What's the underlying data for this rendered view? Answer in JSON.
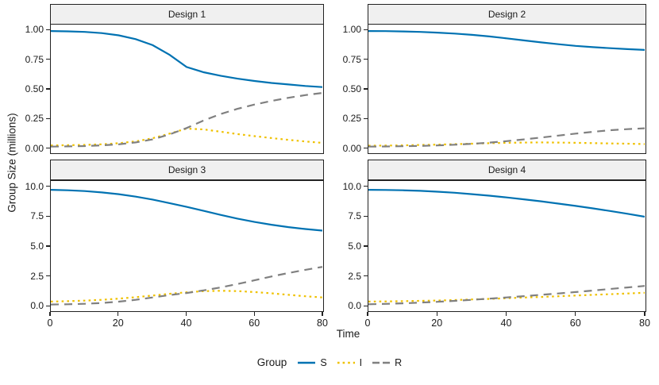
{
  "figure": {
    "y_axis_title": "Group Size (millions)",
    "x_axis_title": "Time",
    "background": "#FFFFFF",
    "panel_border_color": "#222222",
    "strip_background": "#F0F0F0"
  },
  "legend": {
    "title": "Group",
    "entries": [
      {
        "label": "S",
        "color": "#0072B2",
        "dash": "solid"
      },
      {
        "label": "I",
        "color": "#EFC100",
        "dash": "dotted"
      },
      {
        "label": "R",
        "color": "#808080",
        "dash": "dashed"
      }
    ]
  },
  "chart_data": {
    "type": "line",
    "title": "",
    "xlabel": "Time",
    "ylabel": "Group Size (millions)",
    "legend_position": "bottom",
    "grid": false,
    "x": [
      0,
      5,
      10,
      15,
      20,
      25,
      30,
      35,
      40,
      45,
      50,
      55,
      60,
      65,
      70,
      75,
      80
    ],
    "x_ticks": [
      "0",
      "20",
      "40",
      "60",
      "80"
    ],
    "x_tick_values": [
      0,
      20,
      40,
      60,
      80
    ],
    "xlim": [
      0,
      80
    ],
    "facets": [
      {
        "title": "Design 1",
        "ylim": [
          0,
          1
        ],
        "y_ticks": [
          "1.00",
          "0.75",
          "0.50",
          "0.25",
          "0.00"
        ],
        "y_tick_values": [
          1.0,
          0.75,
          0.5,
          0.25,
          0.0
        ],
        "series": [
          {
            "name": "S",
            "values": [
              0.995,
              0.992,
              0.987,
              0.977,
              0.958,
              0.925,
              0.873,
              0.79,
              0.685,
              0.64,
              0.61,
              0.585,
              0.565,
              0.548,
              0.535,
              0.522,
              0.512
            ]
          },
          {
            "name": "I",
            "values": [
              0.01,
              0.012,
              0.015,
              0.02,
              0.029,
              0.045,
              0.072,
              0.112,
              0.155,
              0.148,
              0.128,
              0.108,
              0.09,
              0.074,
              0.058,
              0.044,
              0.032
            ]
          },
          {
            "name": "R",
            "values": [
              0.0,
              0.002,
              0.005,
              0.011,
              0.02,
              0.036,
              0.062,
              0.105,
              0.16,
              0.225,
              0.28,
              0.325,
              0.362,
              0.393,
              0.42,
              0.443,
              0.462
            ]
          }
        ]
      },
      {
        "title": "Design 2",
        "ylim": [
          0,
          1
        ],
        "y_ticks": [
          "1.00",
          "0.75",
          "0.50",
          "0.25",
          "0.00"
        ],
        "y_tick_values": [
          1.0,
          0.75,
          0.5,
          0.25,
          0.0
        ],
        "series": [
          {
            "name": "S",
            "values": [
              0.995,
              0.994,
              0.991,
              0.987,
              0.981,
              0.973,
              0.962,
              0.948,
              0.932,
              0.914,
              0.897,
              0.881,
              0.867,
              0.856,
              0.847,
              0.839,
              0.832
            ]
          },
          {
            "name": "I",
            "values": [
              0.008,
              0.009,
              0.011,
              0.014,
              0.017,
              0.021,
              0.025,
              0.029,
              0.033,
              0.035,
              0.036,
              0.035,
              0.033,
              0.03,
              0.027,
              0.025,
              0.022
            ]
          },
          {
            "name": "R",
            "values": [
              0.0,
              0.001,
              0.003,
              0.006,
              0.01,
              0.016,
              0.024,
              0.034,
              0.047,
              0.062,
              0.078,
              0.095,
              0.112,
              0.127,
              0.141,
              0.15,
              0.158
            ]
          }
        ]
      },
      {
        "title": "Design 3",
        "ylim": [
          0,
          10
        ],
        "y_ticks": [
          "10.0",
          "7.5",
          "5.0",
          "2.5",
          "0.0"
        ],
        "y_tick_values": [
          10.0,
          7.5,
          5.0,
          2.5,
          0.0
        ],
        "series": [
          {
            "name": "S",
            "values": [
              9.75,
              9.71,
              9.64,
              9.53,
              9.38,
              9.17,
              8.92,
              8.62,
              8.3,
              7.96,
              7.62,
              7.3,
              7.02,
              6.78,
              6.58,
              6.42,
              6.28
            ]
          },
          {
            "name": "I",
            "values": [
              0.25,
              0.28,
              0.33,
              0.4,
              0.5,
              0.62,
              0.76,
              0.91,
              1.04,
              1.13,
              1.17,
              1.14,
              1.06,
              0.95,
              0.82,
              0.7,
              0.6
            ]
          },
          {
            "name": "R",
            "values": [
              0.0,
              0.02,
              0.06,
              0.13,
              0.24,
              0.4,
              0.6,
              0.8,
              0.98,
              1.2,
              1.45,
              1.74,
              2.06,
              2.38,
              2.68,
              2.95,
              3.2
            ]
          }
        ]
      },
      {
        "title": "Design 4",
        "ylim": [
          0,
          10
        ],
        "y_ticks": [
          "10.0",
          "7.5",
          "5.0",
          "2.5",
          "0.0"
        ],
        "y_tick_values": [
          10.0,
          7.5,
          5.0,
          2.5,
          0.0
        ],
        "series": [
          {
            "name": "S",
            "values": [
              9.75,
              9.74,
              9.71,
              9.66,
              9.59,
              9.5,
              9.38,
              9.25,
              9.1,
              8.94,
              8.77,
              8.58,
              8.38,
              8.17,
              7.95,
              7.71,
              7.46
            ]
          },
          {
            "name": "I",
            "values": [
              0.25,
              0.26,
              0.28,
              0.31,
              0.34,
              0.38,
              0.43,
              0.48,
              0.53,
              0.59,
              0.64,
              0.7,
              0.76,
              0.82,
              0.88,
              0.94,
              1.0
            ]
          },
          {
            "name": "R",
            "values": [
              0.02,
              0.05,
              0.1,
              0.16,
              0.23,
              0.31,
              0.4,
              0.5,
              0.6,
              0.71,
              0.82,
              0.94,
              1.06,
              1.19,
              1.32,
              1.45,
              1.58
            ]
          }
        ]
      }
    ]
  }
}
